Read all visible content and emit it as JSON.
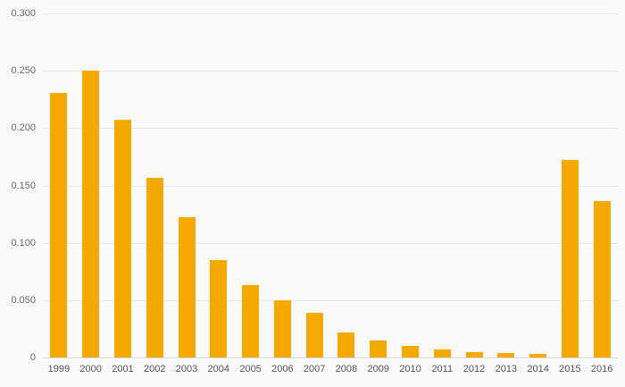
{
  "chart_data": {
    "type": "bar",
    "title": "",
    "xlabel": "",
    "ylabel": "",
    "categories": [
      "1999",
      "2000",
      "2001",
      "2002",
      "2003",
      "2004",
      "2005",
      "2006",
      "2007",
      "2008",
      "2009",
      "2010",
      "2011",
      "2012",
      "2013",
      "2014",
      "2015",
      "2016"
    ],
    "values": [
      0.231,
      0.25,
      0.207,
      0.157,
      0.122,
      0.085,
      0.063,
      0.05,
      0.039,
      0.022,
      0.015,
      0.01,
      0.007,
      0.005,
      0.004,
      0.003,
      0.172,
      0.136
    ],
    "ylim": [
      0,
      0.3
    ],
    "yticks": [
      0,
      0.05,
      0.1,
      0.15,
      0.2,
      0.25,
      0.3
    ],
    "ytick_labels": [
      "0",
      "0.050",
      "0.100",
      "0.150",
      "0.200",
      "0.250",
      "0.300"
    ],
    "grid": "horizontal",
    "legend": "none",
    "bar_color": "#f5a800",
    "background_color": "#fafafa",
    "gridline_color": "#e8e8e8",
    "axis_label_color": "#555555"
  }
}
